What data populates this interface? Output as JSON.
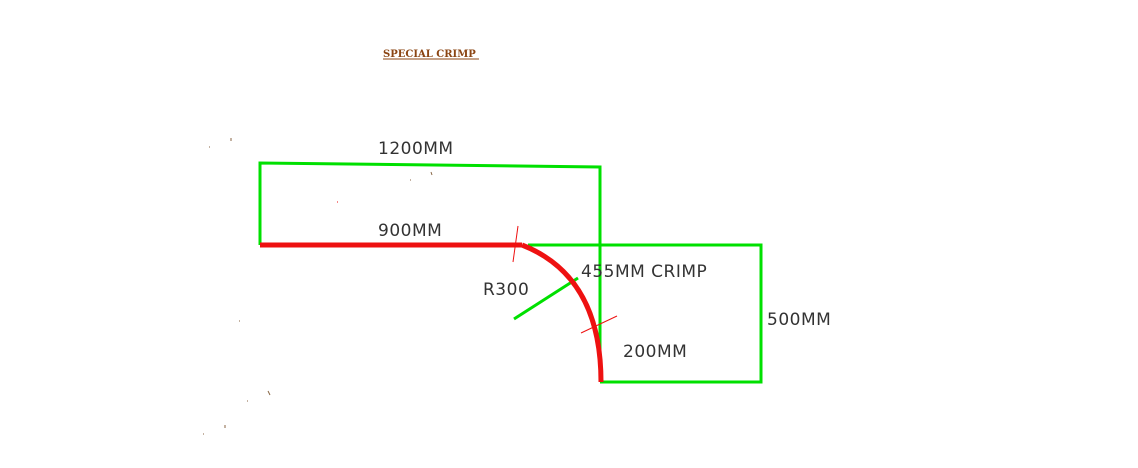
{
  "drawing": {
    "title": "SPECIAL CRIMP",
    "colors": {
      "title": "#8b4513",
      "outline": "#00e000",
      "profile": "#ee1111",
      "text": "#333333",
      "background": "#ffffff"
    },
    "labels": {
      "top_width": "1200MM",
      "flat_length": "900MM",
      "radius": "R300",
      "crimp_length": "455MM CRIMP",
      "right_height": "500MM",
      "bottom_drop": "200MM"
    }
  }
}
